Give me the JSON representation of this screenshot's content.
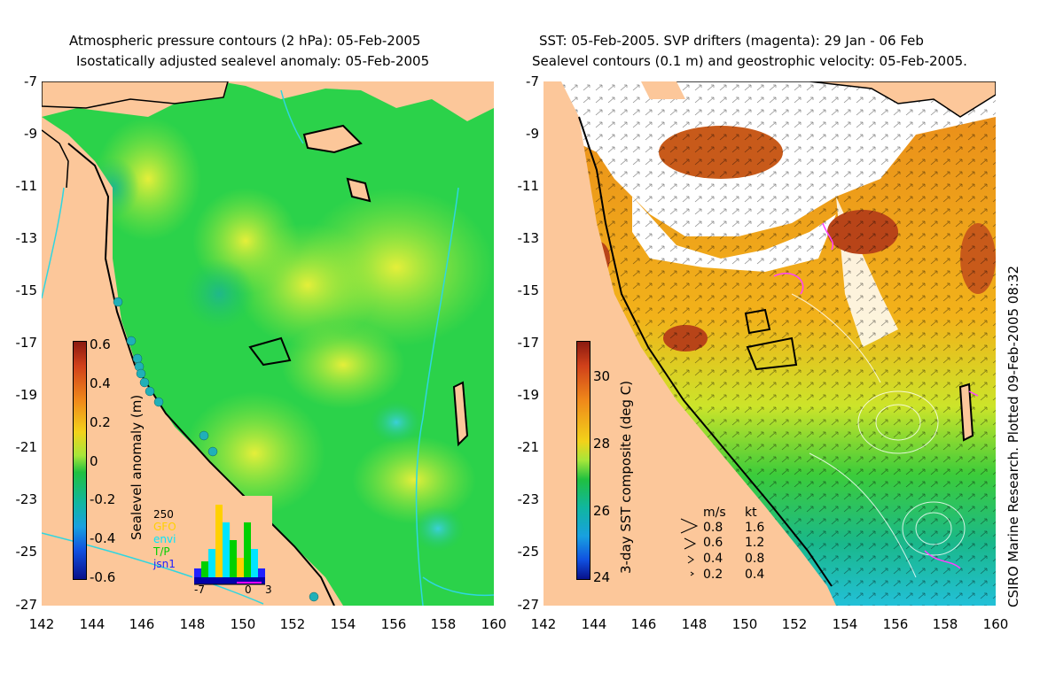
{
  "left_panel": {
    "title_line1": "Atmospheric pressure contours (2 hPa): 05-Feb-2005",
    "title_line2": "Isostatically adjusted sealevel anomaly: 05-Feb-2005",
    "colorbar": {
      "label": "Sealevel anomaly (m)",
      "ticks": [
        "0.6",
        "0.4",
        "0.2",
        "0",
        "-0.2",
        "-0.4",
        "-0.6"
      ]
    },
    "histogram": {
      "count_label": "250",
      "legend": [
        {
          "label": "GFO",
          "color": "#ffd000"
        },
        {
          "label": "envi",
          "color": "#00e5ff"
        },
        {
          "label": "T/P",
          "color": "#00d000"
        },
        {
          "label": "jsn1",
          "color": "#2020ff"
        }
      ],
      "x_ticks": [
        "-7",
        "0",
        "3"
      ]
    }
  },
  "right_panel": {
    "title_line1": "SST: 05-Feb-2005. SVP drifters (magenta): 29 Jan - 06 Feb",
    "title_line2": "Sealevel contours (0.1 m) and geostrophic velocity: 05-Feb-2005.",
    "colorbar": {
      "label": "3-day SST composite (deg C)",
      "ticks": [
        "30",
        "28",
        "26",
        "24"
      ]
    },
    "velocity_legend": {
      "header_ms": "m/s",
      "header_kt": "kt",
      "rows": [
        {
          "ms": "0.8",
          "kt": "1.6"
        },
        {
          "ms": "0.6",
          "kt": "1.2"
        },
        {
          "ms": "0.4",
          "kt": "0.8"
        },
        {
          "ms": "0.2",
          "kt": "0.4"
        }
      ]
    },
    "credit": "CSIRO Marine Research. Plotted 09-Feb-2005 08:32"
  },
  "axes": {
    "y_ticks": [
      "-7",
      "-9",
      "-11",
      "-13",
      "-15",
      "-17",
      "-19",
      "-21",
      "-23",
      "-25",
      "-27"
    ],
    "x_ticks": [
      "142",
      "144",
      "146",
      "148",
      "150",
      "152",
      "154",
      "156",
      "158",
      "160"
    ]
  },
  "colors": {
    "land": "#fcc79a",
    "ocean_green": "#2ed84a",
    "contour_cyan": "#2fd6e0"
  }
}
